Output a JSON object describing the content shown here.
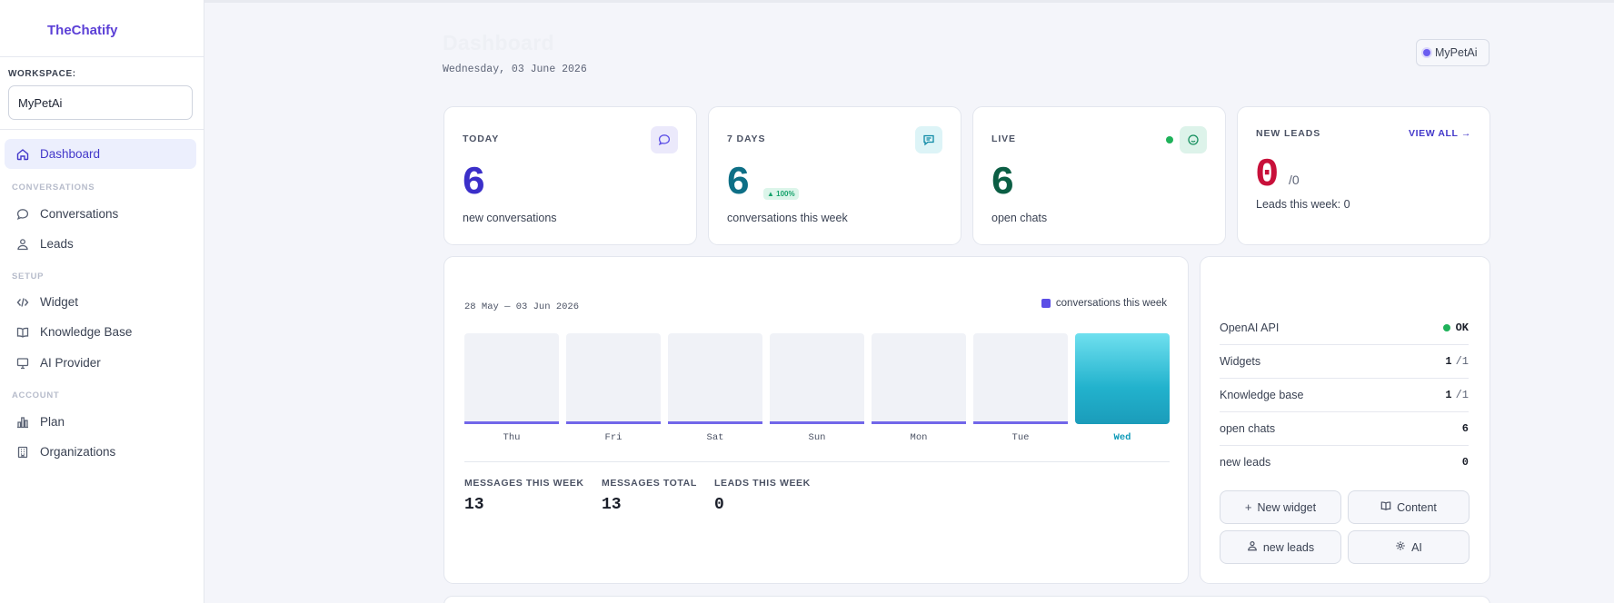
{
  "brand": "TheChatify",
  "workspace": {
    "label": "WORKSPACE:",
    "value": "MyPetAi"
  },
  "nav": {
    "dashboard": "Dashboard",
    "section_conversations": "CONVERSATIONS",
    "conversations": "Conversations",
    "leads": "Leads",
    "section_setup": "SETUP",
    "widget": "Widget",
    "knowledge_base": "Knowledge Base",
    "ai_provider": "AI Provider",
    "section_account": "ACCOUNT",
    "plan": "Plan",
    "organizations": "Organizations"
  },
  "header": {
    "title": "Dashboard",
    "date": "Wednesday, 03 June 2026",
    "workspace_pill": "MyPetAi"
  },
  "stats": {
    "today": {
      "label": "TODAY",
      "value": "6",
      "sub": "new conversations",
      "icon": "chat-bubble-icon",
      "color": "#3b2fc9"
    },
    "seven_days": {
      "label": "7 DAYS",
      "value": "6",
      "trend": "▲ 100%",
      "sub": "conversations this week",
      "icon": "message-square-icon",
      "color": "#0e6f86"
    },
    "live": {
      "label": "LIVE",
      "value": "6",
      "sub": "open chats",
      "icon": "live-chat-icon",
      "color": "#0b5e44"
    },
    "new_leads": {
      "label": "NEW LEADS",
      "view_all": "VIEW ALL →",
      "value": "0",
      "total": "/0",
      "sub": "Leads this week: 0",
      "color": "#c8103a"
    }
  },
  "chart_data": {
    "type": "bar",
    "title": "",
    "date_range": "28 May — 03 Jun 2026",
    "categories": [
      "Thu",
      "Fri",
      "Sat",
      "Sun",
      "Mon",
      "Tue",
      "Wed"
    ],
    "series": [
      {
        "name": "conversations this week",
        "values": [
          0,
          0,
          0,
          0,
          0,
          0,
          6
        ]
      }
    ],
    "highlight_category": "Wed",
    "ylim": [
      0,
      6
    ],
    "grid": false,
    "legend": "top-right",
    "bar_color": "#5b4ee6",
    "highlight_color": "#22b2cd"
  },
  "kpis": [
    {
      "label": "MESSAGES THIS WEEK",
      "value": "13"
    },
    {
      "label": "MESSAGES TOTAL",
      "value": "13"
    },
    {
      "label": "LEADS THIS WEEK",
      "value": "0"
    }
  ],
  "status": {
    "openai": {
      "label": "OpenAI API",
      "value": "OK"
    },
    "widgets": {
      "label": "Widgets",
      "value": "1",
      "limit": "/1"
    },
    "knowledge_base": {
      "label": "Knowledge base",
      "value": "1",
      "limit": "/1"
    },
    "open_chats": {
      "label": "open chats",
      "value": "6"
    },
    "new_leads": {
      "label": "new leads",
      "value": "0"
    }
  },
  "actions": {
    "new_widget": "New widget",
    "content": "Content",
    "new_leads": "new leads",
    "ai": "AI"
  }
}
